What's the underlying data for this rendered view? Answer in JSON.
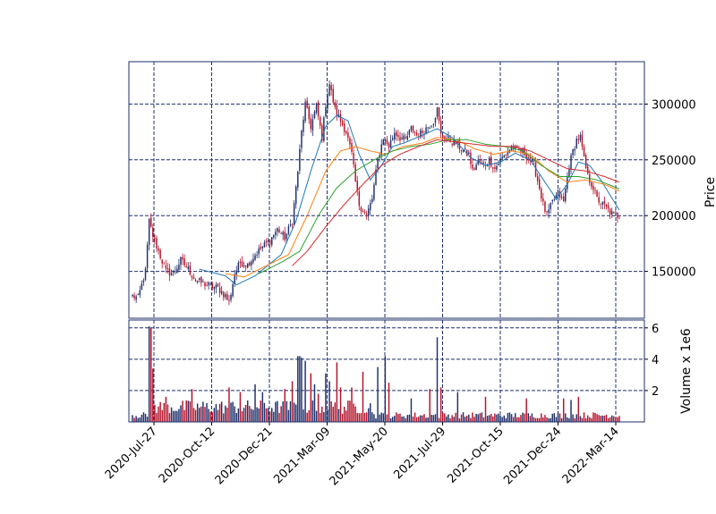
{
  "chart_data": {
    "type": "candlestick",
    "x_tick_labels": [
      "2020-Jul-27",
      "2020-Oct-12",
      "2020-Dec-21",
      "2021-Mar-09",
      "2021-May-20",
      "2021-Jul-29",
      "2021-Oct-15",
      "2021-Dec-24",
      "2022-Mar-14"
    ],
    "price_panel": {
      "ylabel": "Price",
      "ylim": [
        108000,
        338000
      ],
      "y_ticks": [
        150000,
        200000,
        250000,
        300000
      ],
      "y_tick_labels": [
        "150000",
        "200000",
        "250000",
        "300000"
      ],
      "grid": true,
      "up_color": "#1f2f6b",
      "down_color": "#b5122b",
      "close_keypoints": [
        [
          0,
          128000
        ],
        [
          3,
          126000
        ],
        [
          7,
          150000
        ],
        [
          9,
          195000
        ],
        [
          11,
          182000
        ],
        [
          14,
          168000
        ],
        [
          18,
          150000
        ],
        [
          22,
          148000
        ],
        [
          26,
          160000
        ],
        [
          30,
          152000
        ],
        [
          34,
          142000
        ],
        [
          40,
          138000
        ],
        [
          46,
          135000
        ],
        [
          50,
          128000
        ],
        [
          52,
          122000
        ],
        [
          55,
          148000
        ],
        [
          58,
          158000
        ],
        [
          62,
          156000
        ],
        [
          66,
          165000
        ],
        [
          70,
          172000
        ],
        [
          74,
          178000
        ],
        [
          78,
          188000
        ],
        [
          82,
          180000
        ],
        [
          86,
          195000
        ],
        [
          89,
          240000
        ],
        [
          91,
          275000
        ],
        [
          93,
          300000
        ],
        [
          96,
          280000
        ],
        [
          99,
          298000
        ],
        [
          102,
          270000
        ],
        [
          104,
          300000
        ],
        [
          106,
          318000
        ],
        [
          109,
          295000
        ],
        [
          112,
          285000
        ],
        [
          115,
          275000
        ],
        [
          118,
          255000
        ],
        [
          120,
          230000
        ],
        [
          122,
          210000
        ],
        [
          124,
          205000
        ],
        [
          126,
          200000
        ],
        [
          129,
          215000
        ],
        [
          132,
          250000
        ],
        [
          135,
          270000
        ],
        [
          138,
          262000
        ],
        [
          141,
          275000
        ],
        [
          144,
          270000
        ],
        [
          147,
          268000
        ],
        [
          150,
          278000
        ],
        [
          153,
          272000
        ],
        [
          156,
          275000
        ],
        [
          159,
          280000
        ],
        [
          162,
          285000
        ],
        [
          164,
          295000
        ],
        [
          166,
          272000
        ],
        [
          170,
          268000
        ],
        [
          174,
          265000
        ],
        [
          178,
          258000
        ],
        [
          181,
          255000
        ],
        [
          183,
          240000
        ],
        [
          186,
          248000
        ],
        [
          189,
          245000
        ],
        [
          192,
          250000
        ],
        [
          195,
          242000
        ],
        [
          198,
          250000
        ],
        [
          201,
          255000
        ],
        [
          204,
          262000
        ],
        [
          207,
          258000
        ],
        [
          210,
          258000
        ],
        [
          213,
          252000
        ],
        [
          216,
          245000
        ],
        [
          219,
          225000
        ],
        [
          221,
          210000
        ],
        [
          223,
          200000
        ],
        [
          226,
          212000
        ],
        [
          229,
          220000
        ],
        [
          232,
          212000
        ],
        [
          235,
          245000
        ],
        [
          237,
          258000
        ],
        [
          239,
          268000
        ],
        [
          241,
          270000
        ],
        [
          243,
          250000
        ],
        [
          245,
          235000
        ],
        [
          248,
          225000
        ],
        [
          250,
          215000
        ],
        [
          253,
          210000
        ],
        [
          256,
          205000
        ],
        [
          259,
          200000
        ],
        [
          262,
          200000
        ]
      ],
      "moving_averages": [
        {
          "color": "#1f77b4",
          "keypoints": [
            [
              36,
              152000
            ],
            [
              50,
              146000
            ],
            [
              56,
              138000
            ],
            [
              66,
              146000
            ],
            [
              80,
              165000
            ],
            [
              88,
              195000
            ],
            [
              96,
              240000
            ],
            [
              104,
              280000
            ],
            [
              110,
              290000
            ],
            [
              116,
              285000
            ],
            [
              122,
              255000
            ],
            [
              128,
              232000
            ],
            [
              134,
              245000
            ],
            [
              140,
              262000
            ],
            [
              146,
              265000
            ],
            [
              156,
              272000
            ],
            [
              164,
              278000
            ],
            [
              172,
              270000
            ],
            [
              182,
              252000
            ],
            [
              190,
              245000
            ],
            [
              198,
              248000
            ],
            [
              206,
              256000
            ],
            [
              214,
              250000
            ],
            [
              222,
              230000
            ],
            [
              228,
              215000
            ],
            [
              234,
              228000
            ],
            [
              240,
              248000
            ],
            [
              246,
              245000
            ],
            [
              252,
              232000
            ],
            [
              262,
              205000
            ]
          ]
        },
        {
          "color": "#ff7f0e",
          "keypoints": [
            [
              50,
              148000
            ],
            [
              60,
              145000
            ],
            [
              72,
              155000
            ],
            [
              84,
              165000
            ],
            [
              94,
              200000
            ],
            [
              104,
              240000
            ],
            [
              112,
              258000
            ],
            [
              120,
              262000
            ],
            [
              128,
              258000
            ],
            [
              136,
              255000
            ],
            [
              146,
              262000
            ],
            [
              156,
              265000
            ],
            [
              164,
              270000
            ],
            [
              174,
              268000
            ],
            [
              184,
              260000
            ],
            [
              194,
              255000
            ],
            [
              204,
              258000
            ],
            [
              214,
              255000
            ],
            [
              224,
              240000
            ],
            [
              234,
              230000
            ],
            [
              244,
              232000
            ],
            [
              254,
              228000
            ],
            [
              262,
              222000
            ]
          ]
        },
        {
          "color": "#2ca02c",
          "keypoints": [
            [
              68,
              148000
            ],
            [
              80,
              158000
            ],
            [
              90,
              168000
            ],
            [
              100,
              200000
            ],
            [
              110,
              225000
            ],
            [
              120,
              240000
            ],
            [
              130,
              250000
            ],
            [
              140,
              258000
            ],
            [
              150,
              262000
            ],
            [
              160,
              264000
            ],
            [
              170,
              268000
            ],
            [
              180,
              268000
            ],
            [
              190,
              264000
            ],
            [
              200,
              262000
            ],
            [
              210,
              258000
            ],
            [
              220,
              245000
            ],
            [
              230,
              235000
            ],
            [
              240,
              235000
            ],
            [
              250,
              232000
            ],
            [
              262,
              224000
            ]
          ]
        },
        {
          "color": "#d62728",
          "keypoints": [
            [
              86,
              155000
            ],
            [
              94,
              168000
            ],
            [
              104,
              190000
            ],
            [
              114,
              210000
            ],
            [
              124,
              228000
            ],
            [
              134,
              245000
            ],
            [
              144,
              255000
            ],
            [
              154,
              262000
            ],
            [
              164,
              268000
            ],
            [
              174,
              266000
            ],
            [
              184,
              264000
            ],
            [
              194,
              262000
            ],
            [
              204,
              262000
            ],
            [
              214,
              258000
            ],
            [
              224,
              250000
            ],
            [
              234,
              242000
            ],
            [
              244,
              240000
            ],
            [
              254,
              235000
            ],
            [
              262,
              230000
            ]
          ]
        }
      ]
    },
    "volume_panel": {
      "ylabel": "Volume x 1e6",
      "ylim": [
        0,
        6.5
      ],
      "y_ticks": [
        2,
        4,
        6
      ],
      "y_tick_labels": [
        "2",
        "4",
        "6"
      ],
      "grid": true,
      "spikes": [
        [
          9,
          6.1
        ],
        [
          10,
          6.0
        ],
        [
          11,
          3.4
        ],
        [
          18,
          1.6
        ],
        [
          32,
          2.1
        ],
        [
          52,
          2.2
        ],
        [
          58,
          1.9
        ],
        [
          66,
          2.4
        ],
        [
          70,
          1.9
        ],
        [
          82,
          2.1
        ],
        [
          86,
          2.6
        ],
        [
          89,
          4.2
        ],
        [
          90,
          4.2
        ],
        [
          91,
          4.1
        ],
        [
          93,
          3.9
        ],
        [
          96,
          3.1
        ],
        [
          98,
          2.4
        ],
        [
          100,
          1.8
        ],
        [
          104,
          3.1
        ],
        [
          106,
          2.6
        ],
        [
          110,
          3.8
        ],
        [
          112,
          2.2
        ],
        [
          118,
          2.2
        ],
        [
          124,
          3.2
        ],
        [
          132,
          3.5
        ],
        [
          136,
          4.2
        ],
        [
          138,
          2.5
        ],
        [
          150,
          1.5
        ],
        [
          160,
          2.1
        ],
        [
          164,
          5.4
        ],
        [
          166,
          2.2
        ],
        [
          175,
          1.9
        ],
        [
          190,
          1.6
        ],
        [
          212,
          1.5
        ],
        [
          232,
          1.5
        ],
        [
          236,
          1.4
        ],
        [
          240,
          1.6
        ]
      ]
    }
  }
}
